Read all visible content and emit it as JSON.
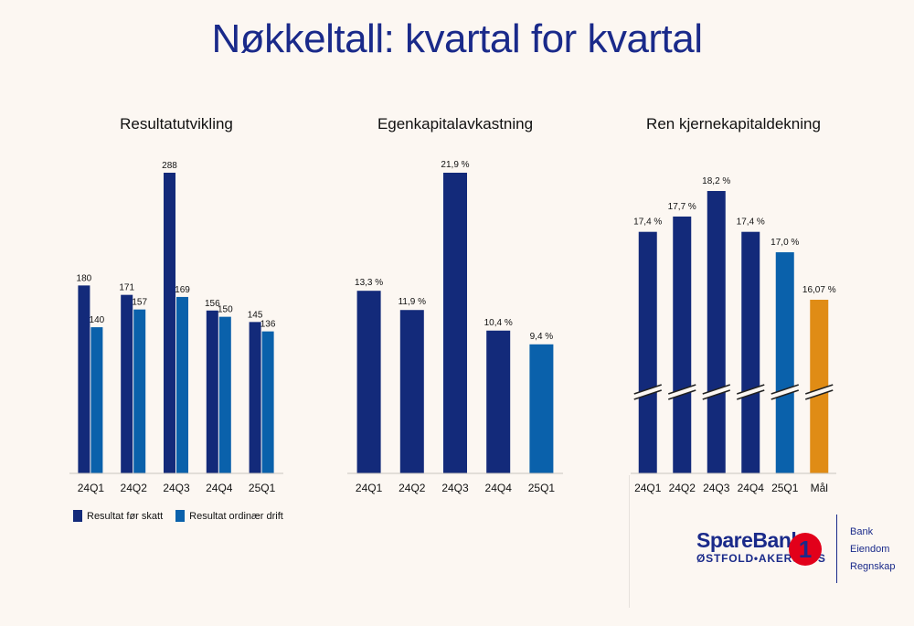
{
  "title": "Nøkkeltall: kvartal for kvartal",
  "colors": {
    "navy": "#132a7a",
    "blue": "#0a61ab",
    "orange": "#e08c15"
  },
  "legend": {
    "item1": "Resultat før skatt",
    "item2": "Resultat ordinær drift"
  },
  "logo": {
    "name": "SpareBank",
    "subtitle": "ØSTFOLD•AKERSHUS",
    "mark": "1",
    "links": [
      "Bank",
      "Eiendom",
      "Regnskap"
    ]
  },
  "chart_data": [
    {
      "type": "bar",
      "title": "Resultatutvikling",
      "categories": [
        "24Q1",
        "24Q2",
        "24Q3",
        "24Q4",
        "25Q1"
      ],
      "series": [
        {
          "name": "Resultat før skatt",
          "values": [
            180,
            171,
            288,
            156,
            145
          ],
          "labels": [
            "180",
            "171",
            "288",
            "156",
            "145"
          ]
        },
        {
          "name": "Resultat ordinær drift",
          "values": [
            140,
            157,
            169,
            150,
            136
          ],
          "labels": [
            "140",
            "157",
            "169",
            "150",
            "136"
          ]
        }
      ],
      "ylim": [
        0,
        300
      ]
    },
    {
      "type": "bar",
      "title": "Egenkapitalavkastning",
      "categories": [
        "24Q1",
        "24Q2",
        "24Q3",
        "24Q4",
        "25Q1"
      ],
      "values": [
        13.3,
        11.9,
        21.9,
        10.4,
        9.4
      ],
      "labels": [
        "13,3 %",
        "11,9 %",
        "21,9 %",
        "10,4 %",
        "9,4 %"
      ],
      "ylim": [
        0,
        22.5
      ]
    },
    {
      "type": "bar",
      "title": "Ren kjernekapitaldekning",
      "categories": [
        "24Q1",
        "24Q2",
        "24Q3",
        "24Q4",
        "25Q1",
        "Mål"
      ],
      "values": [
        17.4,
        17.7,
        18.2,
        17.4,
        17.0,
        16.07
      ],
      "labels": [
        "17,4 %",
        "17,7 %",
        "18,2 %",
        "17,4 %",
        "17,0 %",
        "16,07 %"
      ],
      "axis_break": true
    }
  ]
}
